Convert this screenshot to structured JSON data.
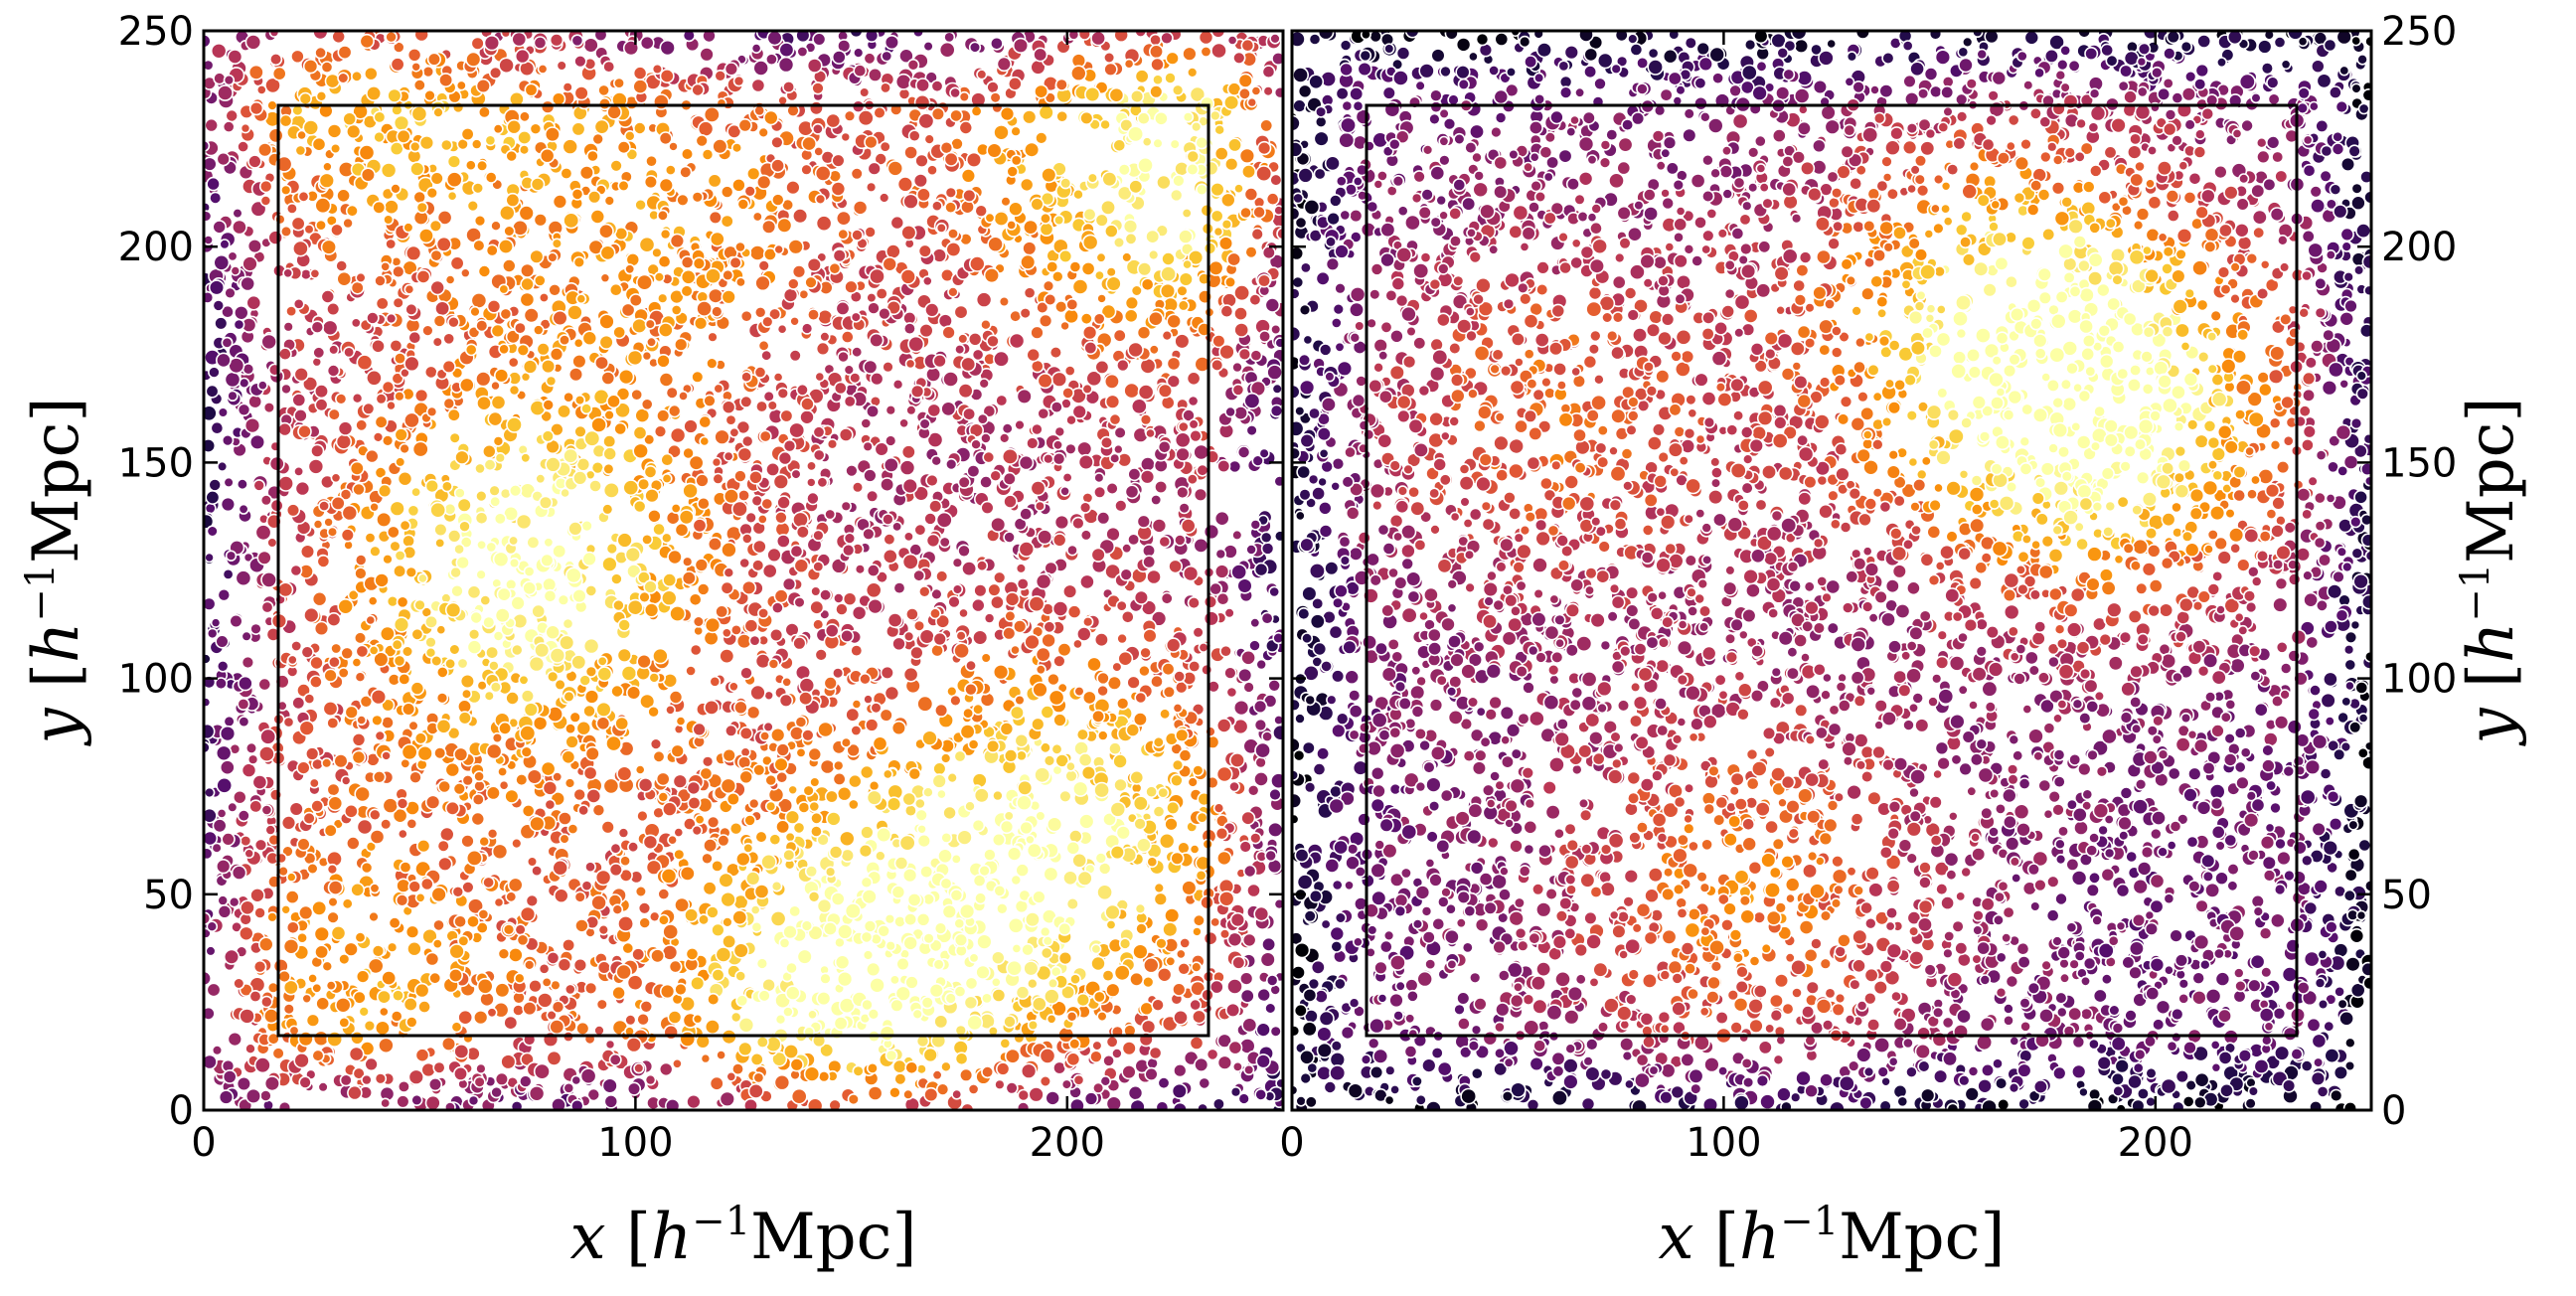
{
  "chart_data": [
    {
      "type": "scatter",
      "xlabel": "x [h⁻¹Mpc]",
      "ylabel": "y [h⁻¹Mpc]",
      "xlim": [
        0,
        250
      ],
      "ylim": [
        0,
        250
      ],
      "x_ticks": [
        "0",
        "100",
        "200"
      ],
      "y_ticks": [
        "0",
        "50",
        "100",
        "150",
        "200",
        "250"
      ],
      "ylabel_side": "left",
      "colormap": "inferno",
      "marker_edge_color": "#ffffff",
      "grid": false,
      "inner_box": {
        "x": [
          17,
          233
        ],
        "y": [
          17,
          233
        ]
      },
      "density_peaks": [
        {
          "x": 75,
          "y": 125,
          "weight": 1.0
        },
        {
          "x": 148,
          "y": 28,
          "weight": 1.0
        },
        {
          "x": 222,
          "y": 220,
          "weight": 0.95
        },
        {
          "x": 200,
          "y": 65,
          "weight": 0.85
        },
        {
          "x": 40,
          "y": 240,
          "weight": 0.7
        },
        {
          "x": 110,
          "y": 210,
          "weight": 0.5
        },
        {
          "x": 35,
          "y": 30,
          "weight": 0.6
        }
      ],
      "background_level": 0.42
    },
    {
      "type": "scatter",
      "xlabel": "x [h⁻¹Mpc]",
      "ylabel": "y [h⁻¹Mpc]",
      "xlim": [
        0,
        250
      ],
      "ylim": [
        0,
        250
      ],
      "x_ticks": [
        "0",
        "100",
        "200"
      ],
      "y_ticks": [
        "0",
        "50",
        "100",
        "150",
        "200",
        "250"
      ],
      "ylabel_side": "right",
      "colormap": "inferno",
      "marker_edge_color": "#ffffff",
      "grid": false,
      "inner_box": {
        "x": [
          17,
          233
        ],
        "y": [
          17,
          233
        ]
      },
      "density_peaks": [
        {
          "x": 190,
          "y": 160,
          "weight": 1.0
        },
        {
          "x": 160,
          "y": 185,
          "weight": 0.75
        },
        {
          "x": 105,
          "y": 50,
          "weight": 0.65
        },
        {
          "x": 60,
          "y": 160,
          "weight": 0.55
        }
      ],
      "background_level": 0.32
    }
  ]
}
